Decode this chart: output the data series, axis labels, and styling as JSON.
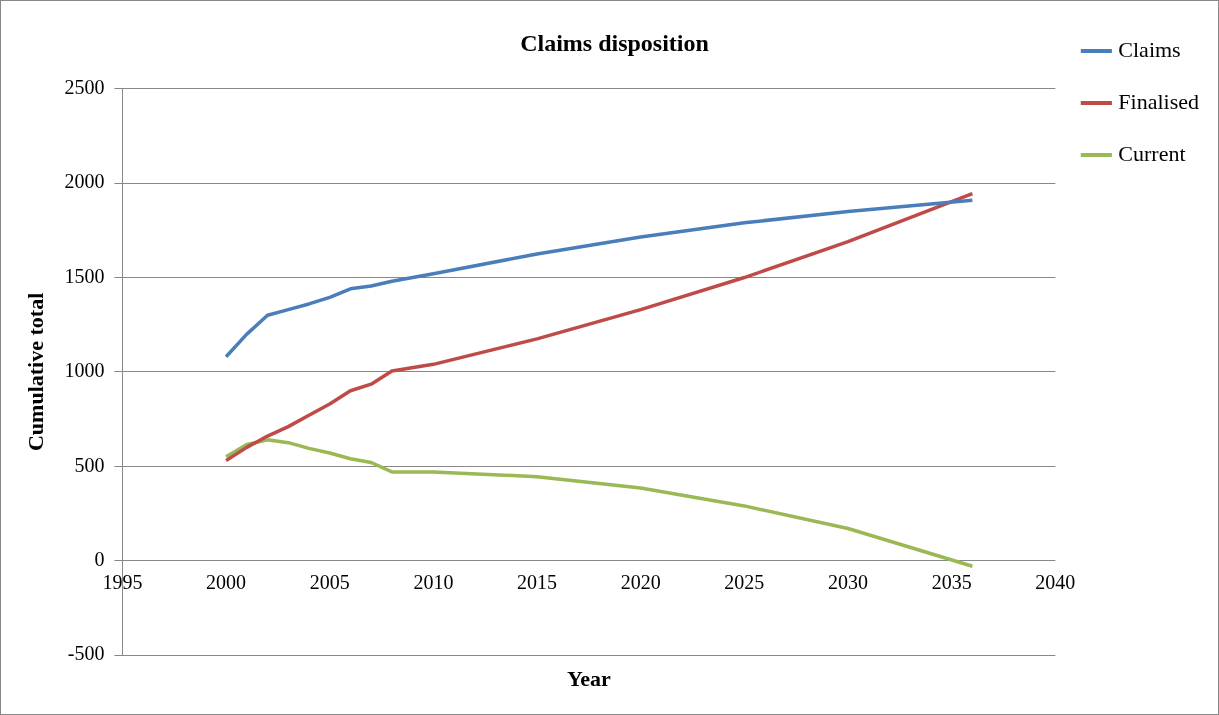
{
  "chart_data": {
    "type": "line",
    "title": "Claims disposition",
    "xlabel": "Year",
    "ylabel": "Cumulative total",
    "x": [
      2000,
      2001,
      2002,
      2003,
      2004,
      2005,
      2006,
      2007,
      2008,
      2010,
      2015,
      2020,
      2025,
      2030,
      2036
    ],
    "series": [
      {
        "name": "Claims",
        "color": "#4a7ebb",
        "values": [
          1080,
          1200,
          1300,
          1330,
          1360,
          1395,
          1440,
          1455,
          1480,
          1520,
          1625,
          1715,
          1790,
          1850,
          1910
        ]
      },
      {
        "name": "Finalised",
        "color": "#be4b48",
        "values": [
          530,
          600,
          660,
          710,
          770,
          830,
          900,
          935,
          1005,
          1040,
          1175,
          1330,
          1500,
          1690,
          1945
        ]
      },
      {
        "name": "Current",
        "color": "#98b954",
        "values": [
          550,
          615,
          640,
          625,
          595,
          570,
          540,
          520,
          470,
          470,
          445,
          385,
          290,
          170,
          -30
        ]
      }
    ],
    "xlim": [
      1995,
      2040
    ],
    "xticks": [
      1995,
      2000,
      2005,
      2010,
      2015,
      2020,
      2025,
      2030,
      2035,
      2040
    ],
    "ylim": [
      -500,
      2500
    ],
    "yticks": [
      -500,
      0,
      500,
      1000,
      1500,
      2000,
      2500
    ],
    "grid": "y",
    "legend": "right",
    "marker": "none",
    "line_style": "solid"
  }
}
